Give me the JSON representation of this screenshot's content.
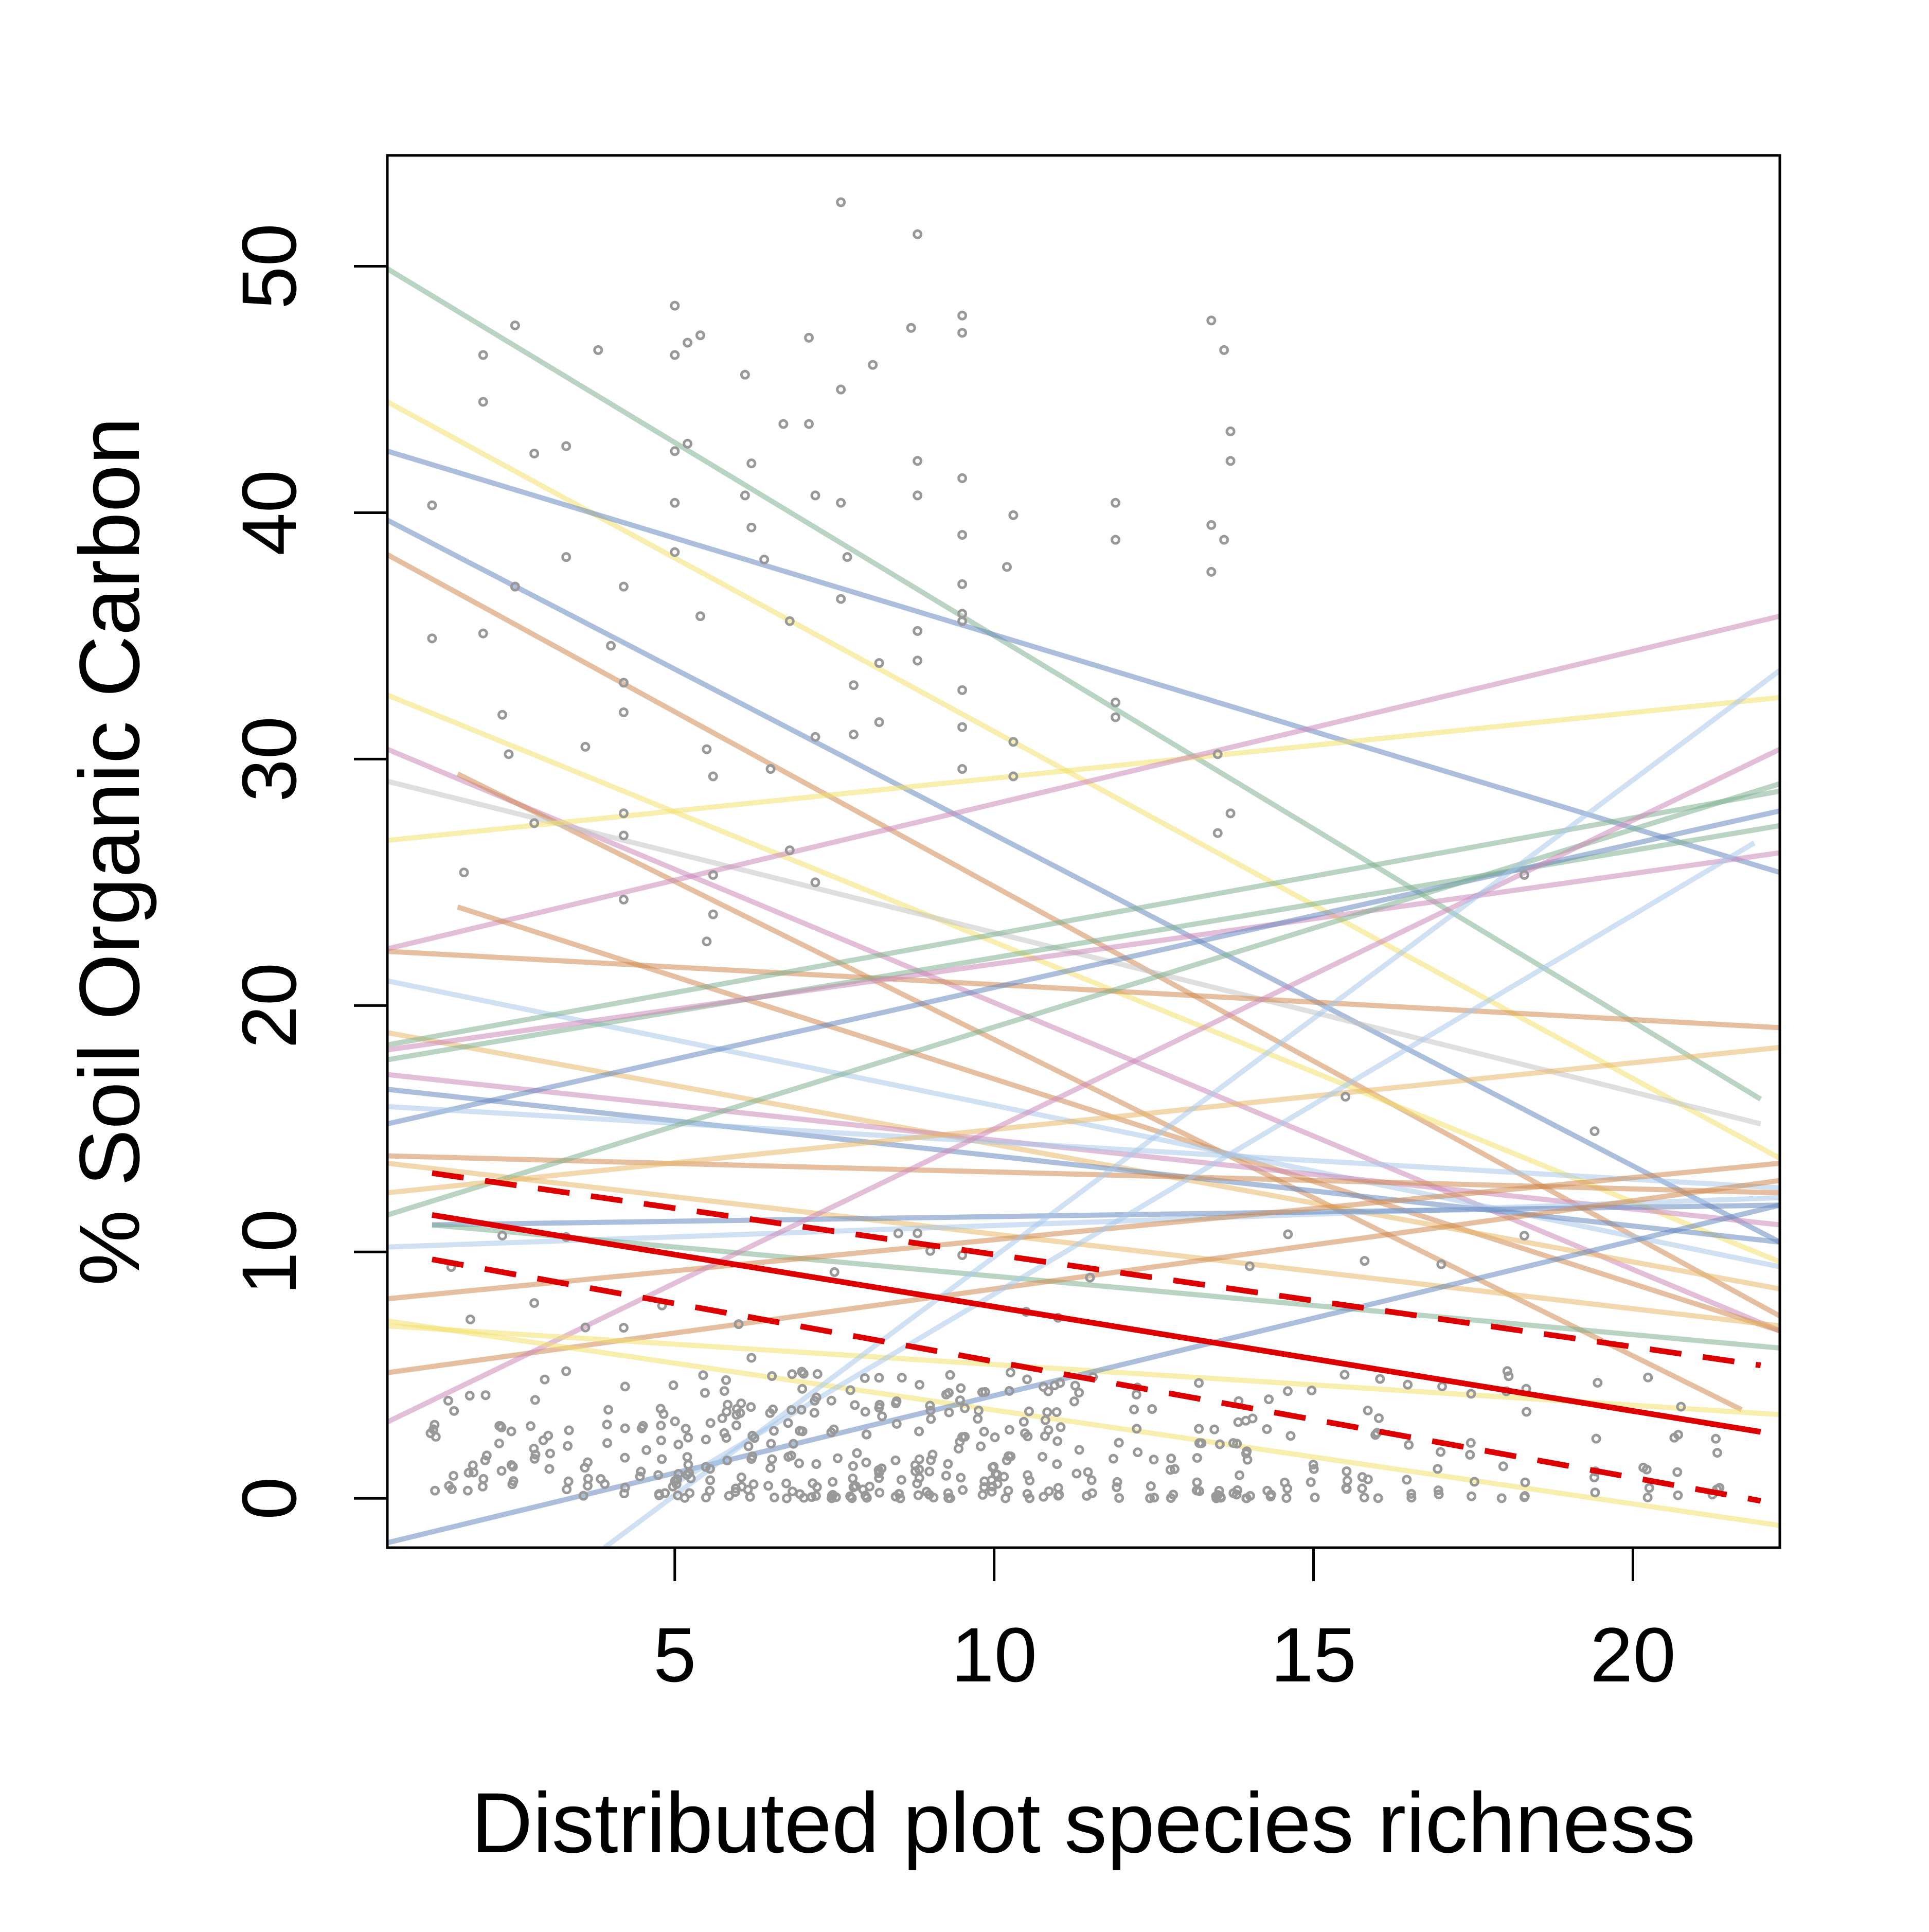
{
  "chart_data": {
    "type": "scatter",
    "title": "",
    "xlabel": "Distributed plot species richness",
    "ylabel": "% Soil Organic Carbon",
    "xlim": [
      0.5,
      22.3
    ],
    "ylim": [
      -2,
      54.5
    ],
    "xticks": [
      5,
      10,
      15,
      20
    ],
    "yticks": [
      0,
      10,
      20,
      30,
      40,
      50
    ],
    "grid": false,
    "legend": "none",
    "point_color": "#999999",
    "points_upper": [
      [
        1.2,
        40.3
      ],
      [
        1.2,
        34.9
      ],
      [
        1.7,
        25.4
      ],
      [
        2,
        46.4
      ],
      [
        2,
        44.5
      ],
      [
        2,
        35.1
      ],
      [
        2.3,
        31.8
      ],
      [
        2.4,
        30.2
      ],
      [
        2.5,
        47.6
      ],
      [
        2.5,
        37.0
      ],
      [
        2.8,
        42.4
      ],
      [
        2.8,
        27.4
      ],
      [
        3.3,
        42.7
      ],
      [
        3.3,
        38.2
      ],
      [
        3.6,
        30.5
      ],
      [
        3.8,
        46.6
      ],
      [
        4,
        34.6
      ],
      [
        4.2,
        37.0
      ],
      [
        4.2,
        33.1
      ],
      [
        4.2,
        31.9
      ],
      [
        4.2,
        27.8
      ],
      [
        4.2,
        26.9
      ],
      [
        4.2,
        24.3
      ],
      [
        5,
        48.4
      ],
      [
        5,
        46.4
      ],
      [
        5,
        42.5
      ],
      [
        5,
        40.4
      ],
      [
        5,
        38.4
      ],
      [
        5.2,
        46.9
      ],
      [
        5.2,
        42.8
      ],
      [
        5.4,
        47.2
      ],
      [
        5.4,
        35.8
      ],
      [
        5.5,
        30.4
      ],
      [
        5.6,
        29.3
      ],
      [
        5.6,
        25.3
      ],
      [
        5.6,
        23.7
      ],
      [
        5.5,
        22.6
      ],
      [
        6.1,
        45.6
      ],
      [
        6.1,
        40.7
      ],
      [
        6.2,
        42.0
      ],
      [
        6.2,
        39.4
      ],
      [
        6.4,
        38.1
      ],
      [
        6.5,
        29.6
      ],
      [
        6.7,
        43.6
      ],
      [
        6.8,
        35.6
      ],
      [
        6.8,
        26.3
      ],
      [
        7.1,
        47.1
      ],
      [
        7.1,
        43.6
      ],
      [
        7.2,
        40.7
      ],
      [
        7.2,
        30.9
      ],
      [
        7.2,
        25.0
      ],
      [
        7.6,
        52.6
      ],
      [
        7.6,
        45.0
      ],
      [
        7.6,
        40.4
      ],
      [
        7.7,
        38.2
      ],
      [
        7.6,
        36.5
      ],
      [
        7.8,
        33.0
      ],
      [
        7.8,
        31.0
      ],
      [
        8.1,
        46.0
      ],
      [
        8.2,
        33.9
      ],
      [
        8.2,
        31.5
      ],
      [
        8.7,
        47.5
      ],
      [
        8.8,
        51.3
      ],
      [
        8.8,
        42.1
      ],
      [
        8.8,
        40.7
      ],
      [
        8.8,
        35.2
      ],
      [
        8.8,
        34.0
      ],
      [
        9.5,
        48.0
      ],
      [
        9.5,
        47.3
      ],
      [
        9.5,
        41.4
      ],
      [
        9.5,
        39.1
      ],
      [
        9.5,
        37.1
      ],
      [
        9.5,
        35.9
      ],
      [
        9.5,
        35.6
      ],
      [
        9.5,
        32.8
      ],
      [
        9.5,
        31.3
      ],
      [
        9.5,
        29.6
      ],
      [
        10.3,
        39.9
      ],
      [
        10.2,
        37.8
      ],
      [
        10.3,
        30.7
      ],
      [
        10.3,
        29.3
      ],
      [
        11.9,
        40.4
      ],
      [
        11.9,
        38.9
      ],
      [
        11.9,
        32.3
      ],
      [
        11.9,
        31.7
      ],
      [
        13.4,
        47.8
      ],
      [
        13.6,
        46.6
      ],
      [
        13.7,
        43.3
      ],
      [
        13.7,
        42.1
      ],
      [
        13.4,
        39.5
      ],
      [
        13.6,
        38.9
      ],
      [
        13.4,
        37.6
      ],
      [
        13.5,
        30.2
      ],
      [
        13.7,
        27.8
      ],
      [
        13.5,
        27.0
      ],
      [
        18.3,
        25.3
      ],
      [
        19.4,
        14.9
      ],
      [
        15.5,
        16.3
      ]
    ],
    "regression_lines": [
      {
        "color": "#7fb08f",
        "x": [
          0.5,
          22.0
        ],
        "y": [
          49.9,
          16.2
        ]
      },
      {
        "color": "#f2e06a",
        "x": [
          0.5,
          22.3
        ],
        "y": [
          44.5,
          13.8
        ]
      },
      {
        "color": "#6688c0",
        "x": [
          0.5,
          22.3
        ],
        "y": [
          42.5,
          25.4
        ]
      },
      {
        "color": "#6688c0",
        "x": [
          0.5,
          22.3
        ],
        "y": [
          39.7,
          10.4
        ]
      },
      {
        "color": "#cf8a50",
        "x": [
          0.5,
          22.3
        ],
        "y": [
          38.3,
          7.4
        ]
      },
      {
        "color": "#f2e06a",
        "x": [
          0.5,
          22.3
        ],
        "y": [
          32.6,
          9.6
        ]
      },
      {
        "color": "#cc88b8",
        "x": [
          0.5,
          22.3
        ],
        "y": [
          30.4,
          6.8
        ]
      },
      {
        "color": "#cf8a50",
        "x": [
          1.6,
          21.7
        ],
        "y": [
          29.4,
          3.6
        ]
      },
      {
        "color": "#c4c4c4",
        "x": [
          0.5,
          22.0
        ],
        "y": [
          29.1,
          15.2
        ]
      },
      {
        "color": "#f2e06a",
        "x": [
          0.5,
          22.3
        ],
        "y": [
          26.7,
          32.5
        ]
      },
      {
        "color": "#cc88b8",
        "x": [
          0.5,
          22.3
        ],
        "y": [
          22.3,
          35.8
        ]
      },
      {
        "color": "#cf8a50",
        "x": [
          1.6,
          22.3
        ],
        "y": [
          24.0,
          6.8
        ]
      },
      {
        "color": "#cf8a50",
        "x": [
          0.5,
          22.3
        ],
        "y": [
          22.2,
          19.1
        ]
      },
      {
        "color": "#a8c8ea",
        "x": [
          0.5,
          22.3
        ],
        "y": [
          21.0,
          9.4
        ]
      },
      {
        "color": "#e8b868",
        "x": [
          0.5,
          22.3
        ],
        "y": [
          18.9,
          8.5
        ]
      },
      {
        "color": "#7fb08f",
        "x": [
          0.5,
          22.3
        ],
        "y": [
          18.4,
          28.7
        ]
      },
      {
        "color": "#7fb08f",
        "x": [
          0.5,
          22.3
        ],
        "y": [
          17.8,
          27.3
        ]
      },
      {
        "color": "#cc88b8",
        "x": [
          0.5,
          22.3
        ],
        "y": [
          18.2,
          26.2
        ]
      },
      {
        "color": "#cc88b8",
        "x": [
          0.5,
          22.3
        ],
        "y": [
          17.2,
          11.1
        ]
      },
      {
        "color": "#6688c0",
        "x": [
          0.5,
          22.3
        ],
        "y": [
          16.6,
          10.4
        ]
      },
      {
        "color": "#6688c0",
        "x": [
          0.5,
          22.3
        ],
        "y": [
          15.2,
          27.9
        ]
      },
      {
        "color": "#a8c8ea",
        "x": [
          0.5,
          22.3
        ],
        "y": [
          15.9,
          12.6
        ]
      },
      {
        "color": "#cf8a50",
        "x": [
          0.5,
          22.3
        ],
        "y": [
          13.9,
          12.4
        ]
      },
      {
        "color": "#e8b868",
        "x": [
          0.5,
          22.3
        ],
        "y": [
          13.6,
          7.0
        ]
      },
      {
        "color": "#7fb08f",
        "x": [
          0.5,
          22.3
        ],
        "y": [
          11.5,
          29.0
        ]
      },
      {
        "color": "#e8b868",
        "x": [
          0.5,
          22.3
        ],
        "y": [
          12.4,
          18.3
        ]
      },
      {
        "color": "#a8c8ea",
        "x": [
          0.5,
          22.3
        ],
        "y": [
          10.2,
          12.2
        ]
      },
      {
        "color": "#6688c0",
        "x": [
          1.2,
          22.3
        ],
        "y": [
          11.1,
          11.9
        ]
      },
      {
        "color": "#7fb08f",
        "x": [
          1.2,
          22.3
        ],
        "y": [
          11.1,
          6.1
        ]
      },
      {
        "color": "#cf8a50",
        "x": [
          0.5,
          22.3
        ],
        "y": [
          8.1,
          13.6
        ]
      },
      {
        "color": "#cf8a50",
        "x": [
          0.5,
          22.3
        ],
        "y": [
          5.1,
          12.9
        ]
      },
      {
        "color": "#cc88b8",
        "x": [
          0.5,
          22.3
        ],
        "y": [
          3.1,
          30.4
        ]
      },
      {
        "color": "#f2e06a",
        "x": [
          0.5,
          22.3
        ],
        "y": [
          7.2,
          -1.1
        ]
      },
      {
        "color": "#f2e06a",
        "x": [
          0.5,
          22.3
        ],
        "y": [
          7.0,
          3.4
        ]
      },
      {
        "color": "#6688c0",
        "x": [
          0.5,
          22.3
        ],
        "y": [
          -1.8,
          11.9
        ]
      },
      {
        "color": "#a8c8ea",
        "x": [
          3.9,
          22.3
        ],
        "y": [
          -2.0,
          33.6
        ]
      },
      {
        "color": "#a8c8ea",
        "x": [
          5.0,
          21.9
        ],
        "y": [
          0.6,
          26.6
        ]
      }
    ],
    "fit_line": {
      "color": "#dd0000",
      "x": [
        1.2,
        22.0
      ],
      "y": [
        11.5,
        2.7
      ]
    },
    "ci_upper": {
      "color": "#dd0000",
      "x": [
        1.2,
        22.0
      ],
      "y": [
        13.2,
        5.4
      ]
    },
    "ci_lower": {
      "color": "#dd0000",
      "x": [
        1.2,
        22.0
      ],
      "y": [
        9.7,
        -0.1
      ]
    }
  }
}
